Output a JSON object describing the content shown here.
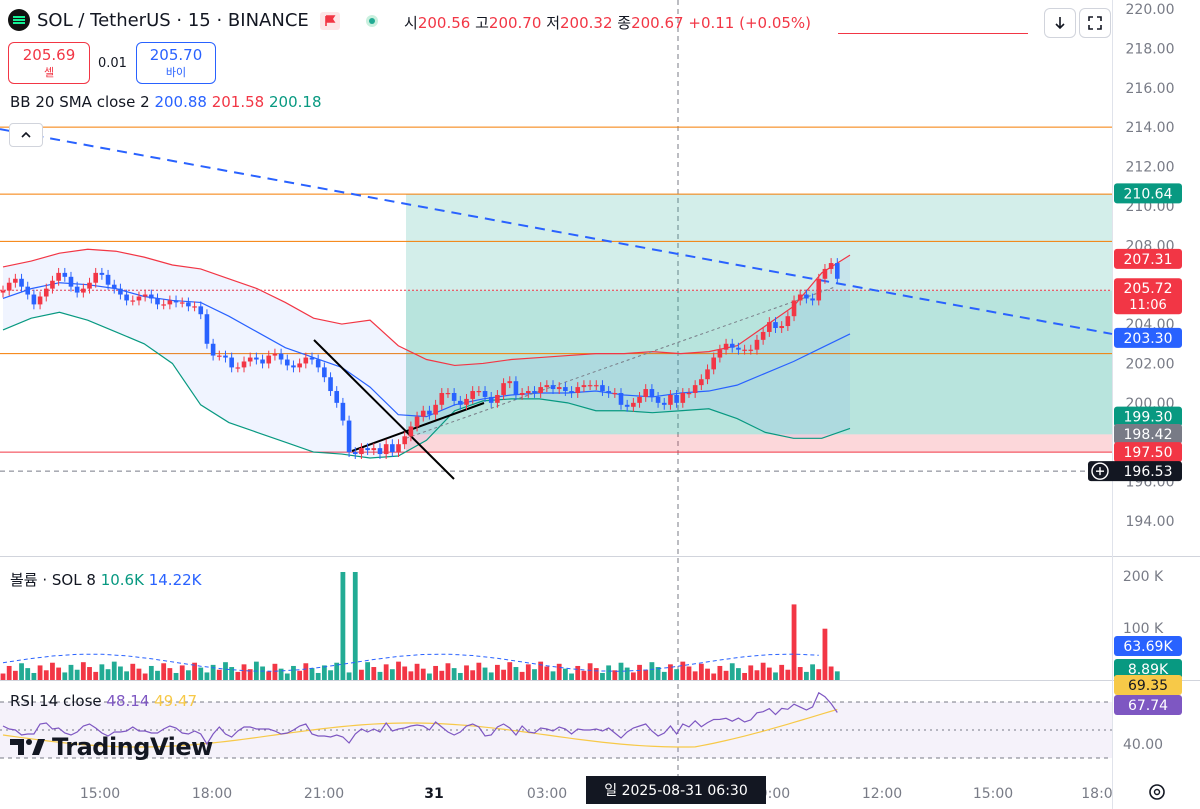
{
  "header": {
    "title": "SOL / TetherUS · 15 · BINANCE",
    "ohlc": [
      {
        "label": "시",
        "value": "200.56"
      },
      {
        "label": "고",
        "value": "200.70"
      },
      {
        "label": "저",
        "value": "200.32"
      },
      {
        "label": "종",
        "value": "200.67"
      }
    ],
    "change": "+0.11 (+0.05%)",
    "down_icon": "arrow-down-icon",
    "fullscreen_icon": "fullscreen-icon"
  },
  "trade": {
    "sell_price": "205.69",
    "sell_label": "셀",
    "spread": "0.01",
    "buy_price": "205.70",
    "buy_label": "바이"
  },
  "indicators": {
    "bb": {
      "label": "BB 20 SMA close 2",
      "v1": "200.88",
      "v2": "201.58",
      "v3": "200.18"
    },
    "vol": {
      "label": "볼륨 · SOL 8",
      "v1": "10.6K",
      "v2": "14.22K"
    },
    "rsi": {
      "label": "RSI 14 close",
      "v1": "48.14",
      "v2": "49.47"
    }
  },
  "watermark": "TradingView",
  "crosshair_label": "일 2025-08-31   06:30",
  "colors": {
    "up": "#f23645",
    "down": "#2962ff",
    "bb_upper": "#f23645",
    "bb_mid": "#2962ff",
    "bb_lower": "#089981",
    "target_zone": "#b2ddd3",
    "stop_zone": "#f8cdd1",
    "hline": "#f57c00"
  },
  "chart_data": [
    {
      "type": "candlestick",
      "symbol": "SOL / TetherUS",
      "interval": "15",
      "exchange": "BINANCE",
      "x_ticks": [
        "15:00",
        "18:00",
        "21:00",
        "31",
        "03:00",
        "09:00",
        "12:00",
        "15:00",
        "18:0"
      ],
      "y_ticks": [
        "194.00",
        "196.00",
        "198.00",
        "200.00",
        "202.00",
        "204.00",
        "206.00",
        "208.00",
        "210.00",
        "212.00",
        "214.00",
        "216.00",
        "218.00",
        "220.00"
      ],
      "ylim": [
        193,
        220
      ],
      "price_labels": [
        {
          "text": "210.64",
          "value": 210.64,
          "color": "#089981"
        },
        {
          "text": "207.31",
          "value": 207.31,
          "color": "#f23645"
        },
        {
          "text": "205.72",
          "sub": "11:06",
          "value": 205.72,
          "color": "#f23645"
        },
        {
          "text": "203.30",
          "value": 203.3,
          "color": "#2962ff"
        },
        {
          "text": "199.30",
          "value": 199.3,
          "color": "#089981"
        },
        {
          "text": "198.42",
          "value": 198.42,
          "color": "#787b86"
        },
        {
          "text": "197.50",
          "value": 197.5,
          "color": "#f23645"
        },
        {
          "text": "196.53",
          "value": 196.53,
          "color": "#131722"
        }
      ],
      "horizontal_lines": [
        214.0,
        210.6,
        208.2,
        202.5,
        197.5
      ],
      "position": {
        "entry": 205.7,
        "target": 210.6,
        "stop": 198.4
      },
      "trendline": {
        "from": 213.9,
        "to": 203.5
      },
      "open": [
        205.6,
        205.7,
        206.1,
        206.3,
        205.9,
        205.5,
        205.0,
        205.4,
        205.8,
        206.2,
        206.6,
        206.4,
        205.9,
        205.6,
        205.8,
        206.1,
        206.6,
        206.5,
        206.0,
        205.8,
        205.5,
        205.2,
        205.2,
        205.4,
        205.5,
        205.3,
        205.0,
        205.0,
        205.2,
        205.1,
        205.1,
        204.9,
        204.9,
        204.5,
        203.0,
        202.4,
        202.4,
        202.3,
        201.8,
        201.8,
        202.1,
        202.3,
        202.2,
        202.0,
        202.4,
        202.5,
        202.2,
        201.9,
        201.8,
        202.0,
        202.3,
        202.2,
        201.8,
        201.3,
        200.6,
        200.0,
        199.1,
        197.5,
        197.4,
        197.7,
        197.6,
        197.7,
        197.4,
        197.9,
        197.5,
        197.9,
        198.3,
        198.8,
        199.3,
        199.6,
        199.4,
        199.9,
        200.5,
        200.5,
        200.1,
        199.9,
        200.2,
        200.6,
        200.6,
        200.3,
        200.0,
        200.4,
        201.0,
        201.1,
        200.4,
        200.5,
        200.6,
        200.5,
        200.8,
        200.9,
        200.7,
        200.8,
        200.6,
        200.5,
        200.8,
        200.9,
        200.9,
        200.9,
        200.6,
        200.5,
        200.5,
        199.9,
        199.8,
        200.0,
        200.3,
        200.7,
        200.3,
        200.0,
        199.9,
        200.4,
        200.0,
        200.5,
        200.5,
        200.9,
        201.2,
        201.7,
        202.3,
        202.7,
        203.0,
        202.8,
        202.7,
        202.7,
        202.7,
        203.2,
        203.6,
        204.1,
        203.8,
        203.9,
        204.4,
        205.2,
        205.5,
        205.3,
        205.2,
        206.3,
        206.8,
        207.1
      ],
      "close": [
        205.7,
        206.1,
        206.3,
        205.9,
        205.5,
        205.0,
        205.4,
        205.8,
        206.2,
        206.6,
        206.4,
        205.9,
        205.6,
        205.8,
        206.1,
        206.6,
        206.5,
        206.0,
        205.8,
        205.5,
        205.2,
        205.2,
        205.4,
        205.5,
        205.3,
        205.0,
        205.0,
        205.2,
        205.1,
        205.1,
        204.9,
        204.9,
        204.5,
        203.0,
        202.4,
        202.4,
        202.3,
        201.8,
        201.8,
        202.1,
        202.3,
        202.2,
        202.0,
        202.4,
        202.5,
        202.2,
        201.9,
        201.8,
        202.0,
        202.3,
        202.2,
        201.8,
        201.3,
        200.6,
        200.0,
        199.1,
        197.5,
        197.4,
        197.7,
        197.6,
        197.7,
        197.4,
        197.9,
        197.5,
        197.9,
        198.3,
        198.8,
        199.3,
        199.6,
        199.4,
        199.9,
        200.5,
        200.5,
        200.1,
        199.9,
        200.2,
        200.6,
        200.6,
        200.3,
        200.0,
        200.4,
        201.0,
        201.1,
        200.4,
        200.5,
        200.6,
        200.5,
        200.8,
        200.9,
        200.7,
        200.8,
        200.6,
        200.5,
        200.8,
        200.9,
        200.9,
        200.9,
        200.6,
        200.5,
        200.5,
        199.9,
        199.8,
        200.0,
        200.3,
        200.7,
        200.3,
        200.0,
        199.9,
        200.4,
        200.0,
        200.5,
        200.5,
        200.9,
        201.2,
        201.7,
        202.3,
        202.7,
        203.0,
        202.8,
        202.7,
        202.7,
        202.7,
        203.2,
        203.6,
        204.1,
        203.8,
        203.9,
        204.4,
        205.2,
        205.5,
        205.3,
        205.2,
        206.3,
        206.8,
        207.1,
        206.3
      ],
      "bollinger": {
        "upper": [
          206.9,
          207.2,
          207.6,
          207.8,
          207.7,
          207.4,
          207.0,
          206.8,
          206.3,
          205.8,
          205.1,
          204.3,
          204.0,
          204.2,
          202.9,
          202.2,
          201.9,
          202.0,
          202.2,
          202.3,
          202.4,
          202.5,
          202.5,
          202.6,
          202.5,
          202.6,
          202.9,
          203.9,
          204.9,
          206.6,
          207.5
        ],
        "middle": [
          205.3,
          205.8,
          206.1,
          206.0,
          205.8,
          205.4,
          205.2,
          205.1,
          204.4,
          203.6,
          202.8,
          202.3,
          201.8,
          200.8,
          199.4,
          199.3,
          199.9,
          200.2,
          200.4,
          200.5,
          200.5,
          200.6,
          200.4,
          200.3,
          200.5,
          200.6,
          200.9,
          201.5,
          202.1,
          202.8,
          203.5
        ],
        "lower": [
          203.7,
          204.3,
          204.6,
          204.2,
          203.6,
          203.0,
          202.0,
          199.9,
          199.0,
          198.5,
          198.0,
          197.5,
          197.4,
          197.2,
          197.3,
          198.1,
          199.6,
          200.1,
          200.2,
          200.2,
          200.0,
          199.6,
          199.6,
          199.5,
          199.6,
          199.7,
          199.2,
          198.5,
          198.2,
          198.2,
          198.7
        ]
      },
      "volume": {
        "y_ticks": [
          "100 K",
          "200 K"
        ],
        "labels": [
          "63.69K",
          "8.89K"
        ],
        "label_colors": [
          "#2962ff",
          "#089981"
        ]
      },
      "rsi": {
        "y_ticks": [
          "40.00"
        ],
        "labels": [
          "69.35",
          "67.74"
        ],
        "label_colors": [
          "#f7c948",
          "#7e57c2"
        ]
      }
    }
  ]
}
